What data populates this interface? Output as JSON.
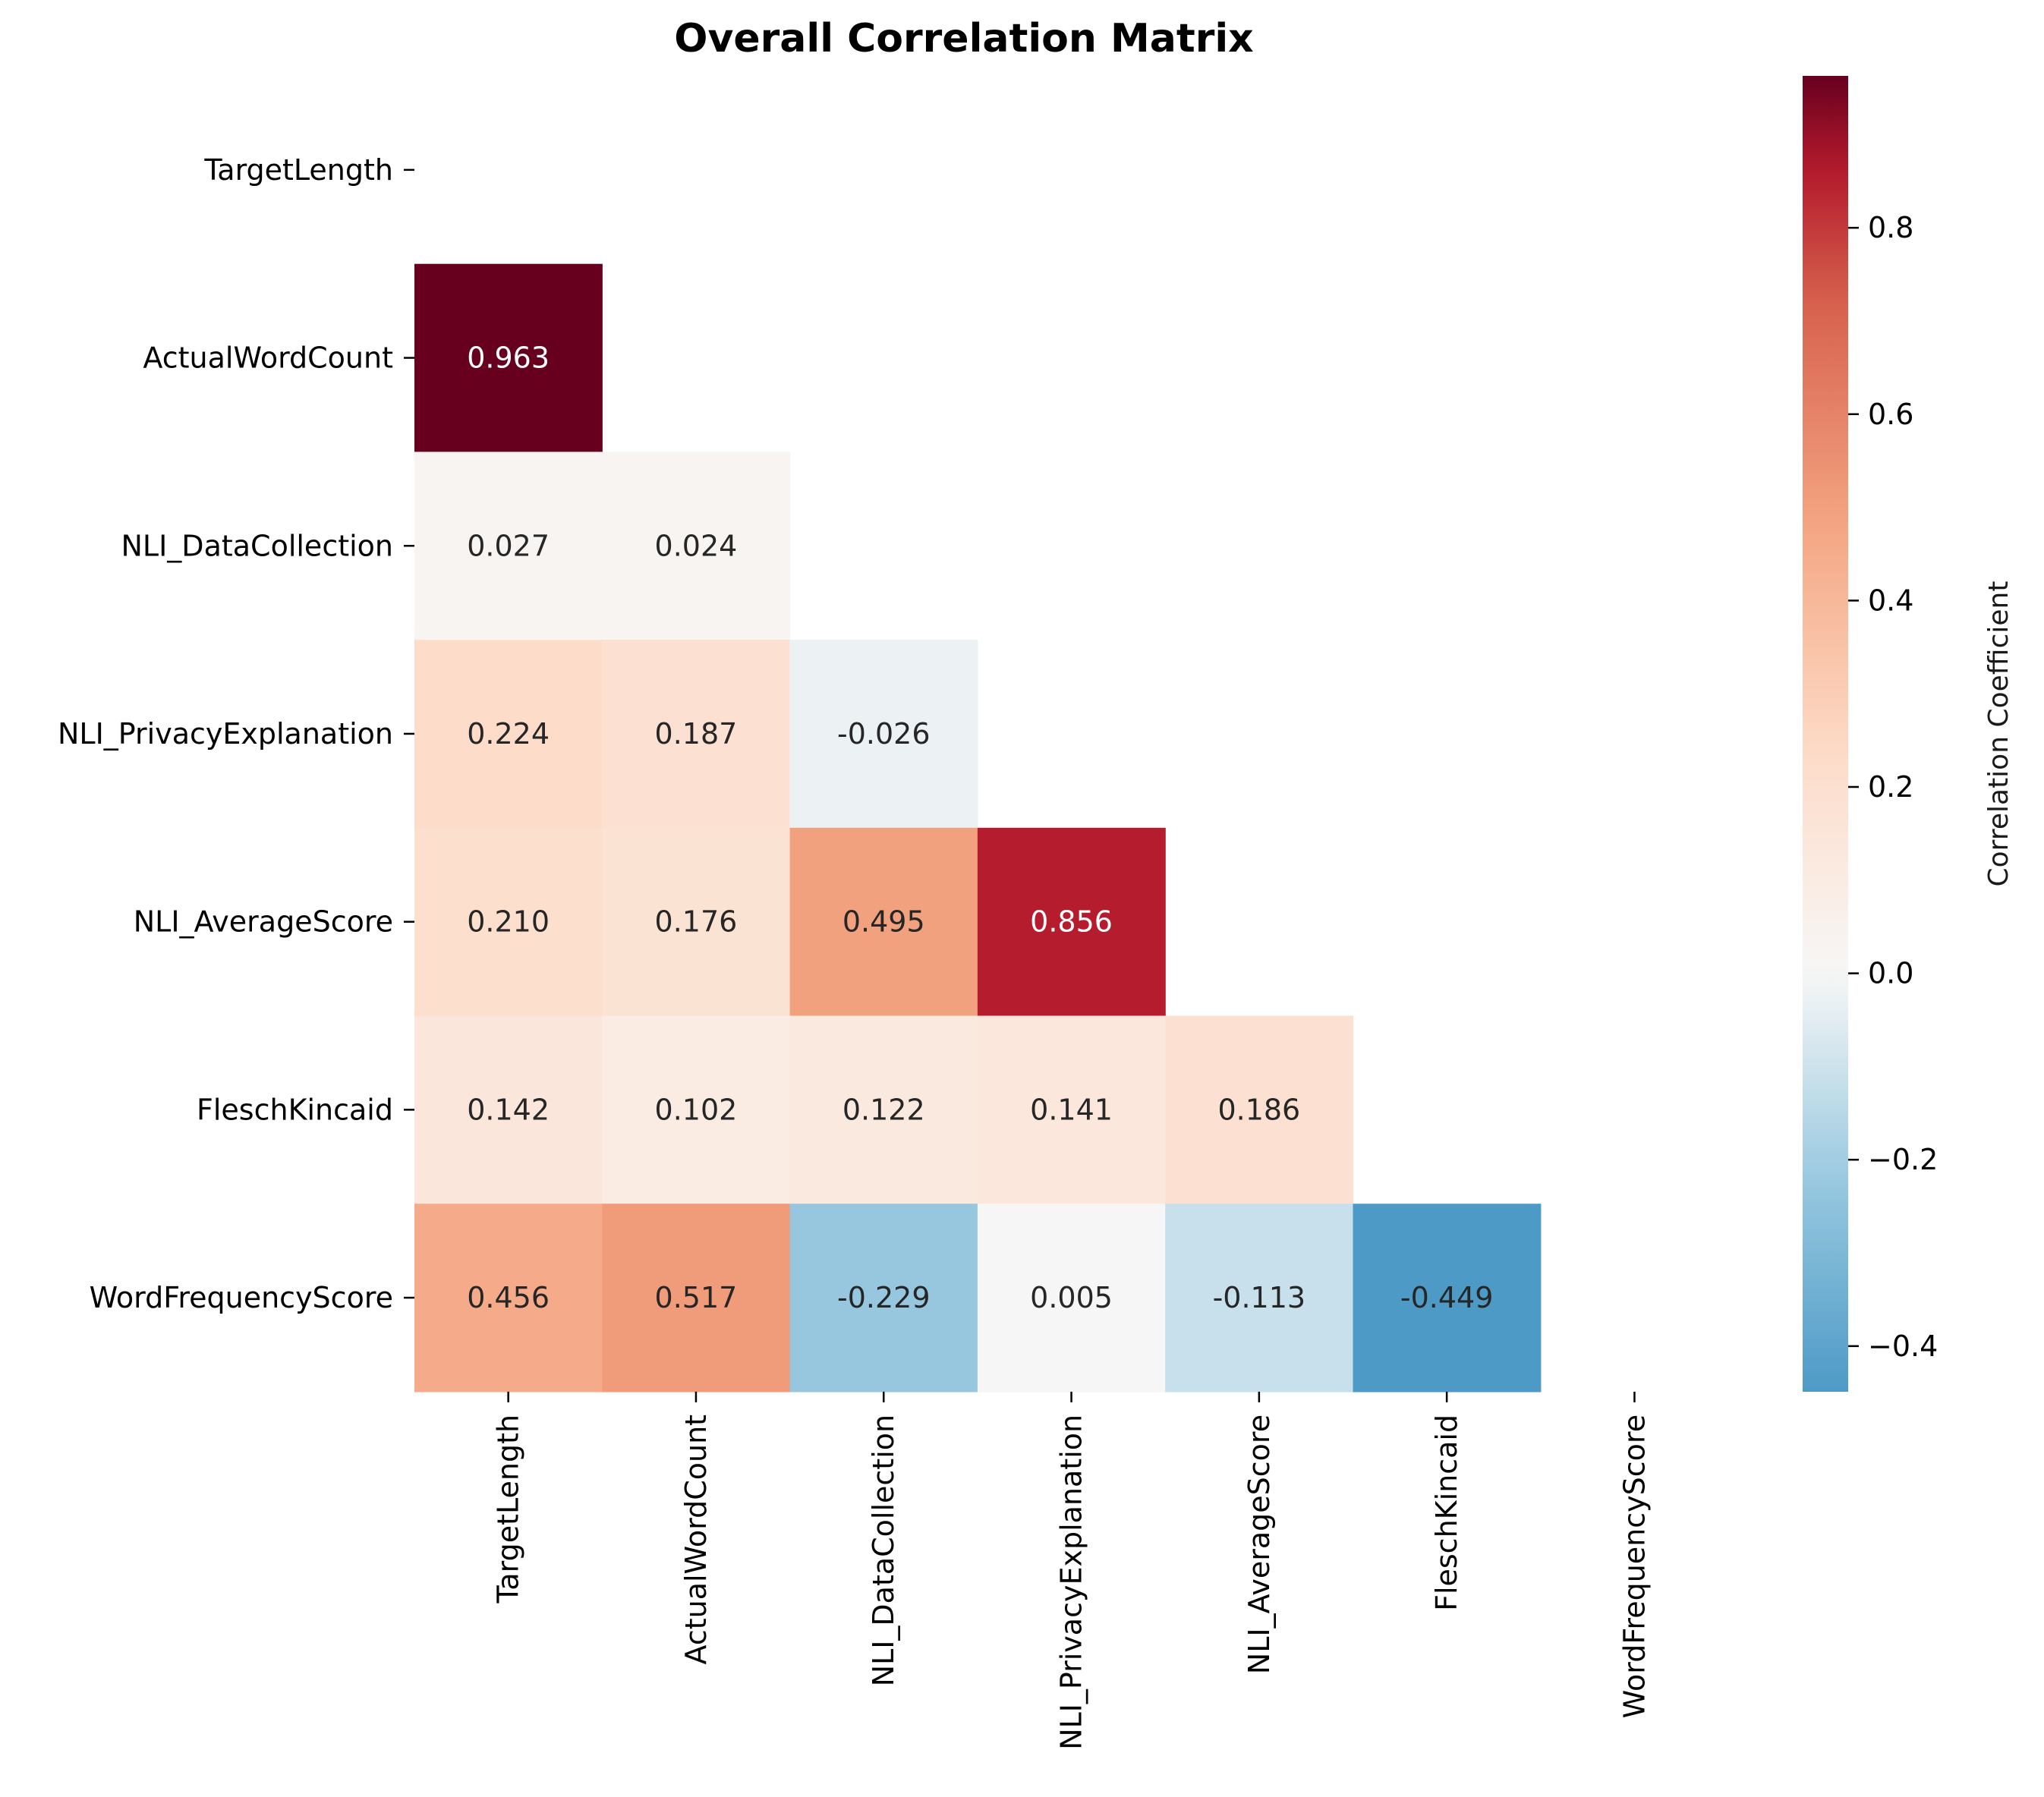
{
  "chart_data": {
    "type": "heatmap",
    "title": "Overall Correlation Matrix",
    "xlabel": "",
    "ylabel": "",
    "variables": [
      "TargetLength",
      "ActualWordCount",
      "NLI_DataCollection",
      "NLI_PrivacyExplanation",
      "NLI_AverageScore",
      "FleschKincaid",
      "WordFrequencyScore"
    ],
    "mask": "upper-triangle-and-diagonal",
    "values": [
      [
        null,
        null,
        null,
        null,
        null,
        null,
        null
      ],
      [
        0.963,
        null,
        null,
        null,
        null,
        null,
        null
      ],
      [
        0.027,
        0.024,
        null,
        null,
        null,
        null,
        null
      ],
      [
        0.224,
        0.187,
        -0.026,
        null,
        null,
        null,
        null
      ],
      [
        0.21,
        0.176,
        0.495,
        0.856,
        null,
        null,
        null
      ],
      [
        0.142,
        0.102,
        0.122,
        0.141,
        0.186,
        null,
        null
      ],
      [
        0.456,
        0.517,
        -0.229,
        0.005,
        -0.113,
        -0.449,
        null
      ]
    ],
    "value_format": "3 decimals",
    "colormap": "RdBu_r",
    "colorbar": {
      "label": "Correlation Coefficient",
      "range": [
        -0.449,
        0.963
      ],
      "ticks": [
        0.8,
        0.6,
        0.4,
        0.2,
        0.0,
        -0.2,
        -0.4
      ],
      "tick_labels": [
        "0.8",
        "0.6",
        "0.4",
        "0.2",
        "0.0",
        "−0.2",
        "−0.4"
      ]
    },
    "grid": false,
    "legend": "colorbar-right"
  }
}
